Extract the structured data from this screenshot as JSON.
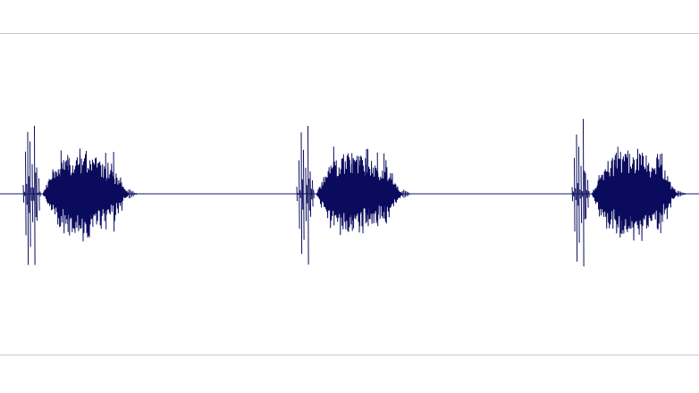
{
  "waveform": {
    "colors": {
      "background": "#ffffff",
      "wave": "#0b0b5e",
      "baseline": "#1a1a6e",
      "track_border": "#c8c8c8"
    },
    "bursts": [
      {
        "name": "burst-1",
        "onset_spikes": [
          0.12,
          0.55,
          0.92,
          0.7,
          0.4,
          1.0,
          0.35,
          0.22
        ],
        "body_peak": 0.62,
        "body_decay": 0.3
      },
      {
        "name": "burst-2",
        "onset_spikes": [
          0.1,
          0.45,
          0.85,
          0.62,
          0.38,
          1.0,
          0.3,
          0.18
        ],
        "body_peak": 0.6,
        "body_decay": 0.28
      },
      {
        "name": "burst-3",
        "onset_spikes": [
          0.1,
          0.5,
          0.88,
          0.65,
          0.42,
          1.0,
          0.32,
          0.2
        ],
        "body_peak": 0.64,
        "body_decay": 0.3
      }
    ]
  }
}
